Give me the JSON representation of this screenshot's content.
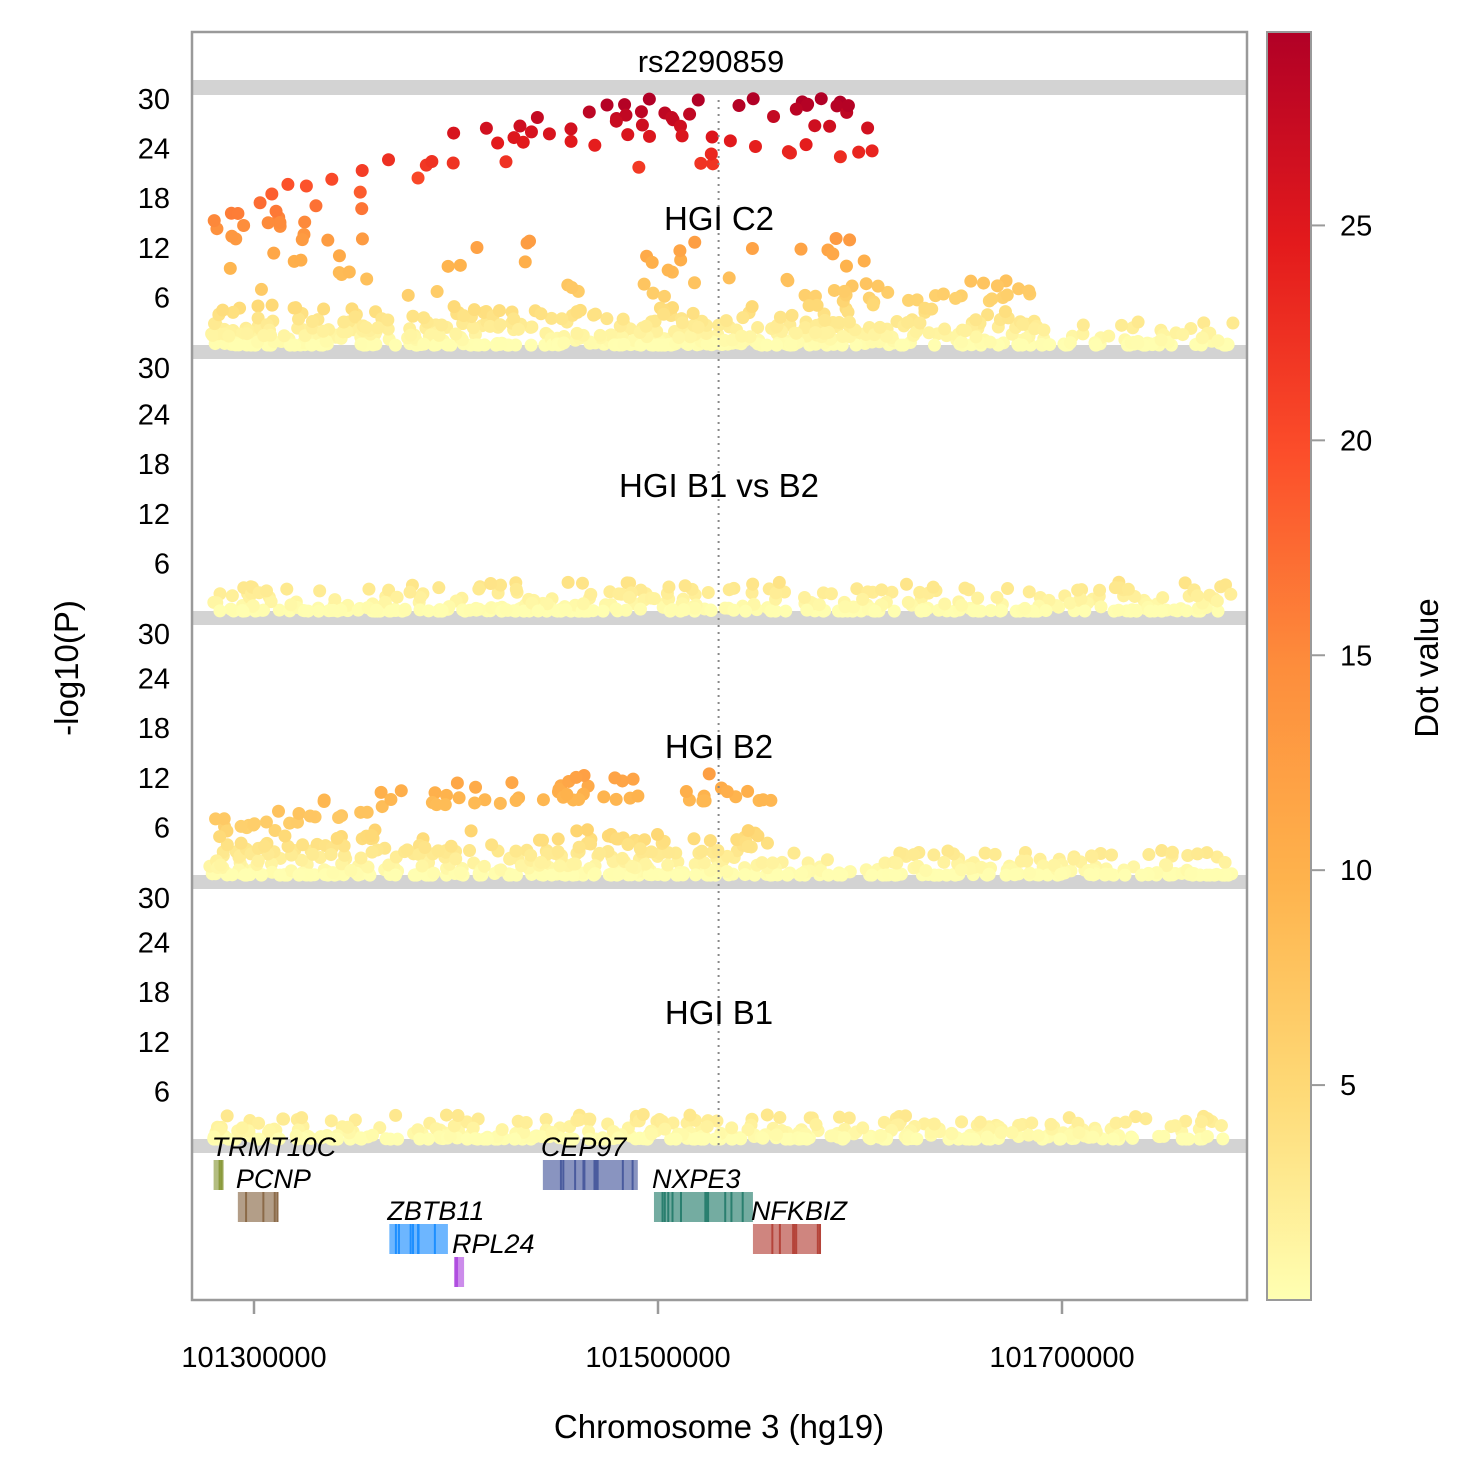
{
  "chart_data": {
    "type": "scatter",
    "xlabel": "Chromosome 3 (hg19)",
    "ylabel": "-log10(P)",
    "xlim": [
      101268000,
      101793000
    ],
    "x_ticks": [
      101300000,
      101500000,
      101700000
    ],
    "ylim": [
      0,
      33
    ],
    "y_ticks": [
      6,
      12,
      18,
      24,
      30
    ],
    "y_ticks_top": [
      30
    ],
    "lead_snp": {
      "label": "rs2290859",
      "position": 101530000
    },
    "colorbar": {
      "title": "Dot value",
      "range": [
        0,
        29.5
      ],
      "ticks": [
        5,
        10,
        15,
        20,
        25
      ],
      "colors": [
        "#ffffb2",
        "#fed976",
        "#feb24c",
        "#fd8d3c",
        "#fc4e2a",
        "#e31a1c",
        "#b10026"
      ]
    },
    "panels": [
      {
        "name": "HGI C2",
        "peak": 30,
        "signal_start": 101280000,
        "signal_end": 101610000
      },
      {
        "name": "HGI B1 vs B2",
        "peak": 3.5
      },
      {
        "name": "HGI B2",
        "peak": 12.5,
        "signal_start": 101280000,
        "signal_end": 101560000
      },
      {
        "name": "HGI B1",
        "peak": 3
      }
    ],
    "genes": [
      {
        "name": "TRMT10C",
        "start": 101280000,
        "end": 101285000,
        "row": 0,
        "color": "#8a9a3c"
      },
      {
        "name": "PCNP",
        "start": 101292000,
        "end": 101312000,
        "row": 1,
        "color": "#8b6a48"
      },
      {
        "name": "ZBTB11",
        "start": 101367000,
        "end": 101396000,
        "row": 2,
        "color": "#1e8fff"
      },
      {
        "name": "RPL24",
        "start": 101399000,
        "end": 101404000,
        "row": 3,
        "color": "#b04fe0"
      },
      {
        "name": "CEP97",
        "start": 101443000,
        "end": 101490000,
        "row": 0,
        "color": "#4a5b9e"
      },
      {
        "name": "NXPE3",
        "start": 101498000,
        "end": 101547000,
        "row": 1,
        "color": "#2a7f6f"
      },
      {
        "name": "NFKBIZ",
        "start": 101547000,
        "end": 101580000,
        "row": 2,
        "color": "#b5443a"
      }
    ]
  }
}
